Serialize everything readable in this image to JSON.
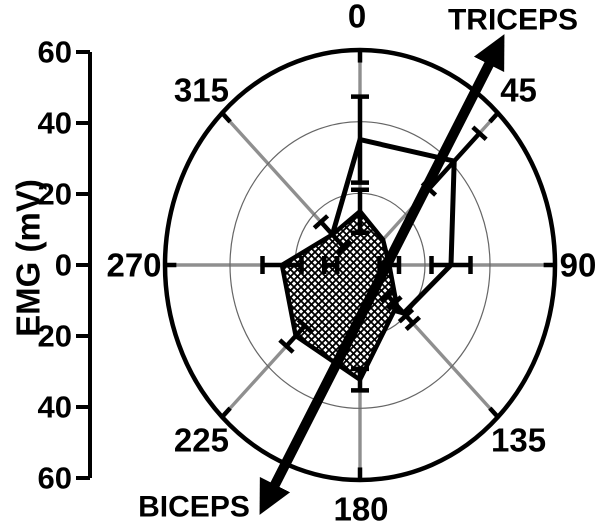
{
  "figure": {
    "triceps_label": "TRICEPS",
    "biceps_label": "BICEPS"
  },
  "chart_data": {
    "type": "polar-line",
    "description": "Polar plot of EMG amplitude (mV) versus direction (degrees) for two muscles; TRICEPS is an open black polygon with error bars, BICEPS is a crosshatched polygon with error bars. A thick double-headed arrow runs from the BICEPS label (lower left) to the TRICEPS label (upper right) through the plot.",
    "radial_axis": {
      "title": "EMG (mV)",
      "tick_labels": [
        "60",
        "40",
        "20",
        "0",
        "20",
        "40",
        "60"
      ],
      "max_mv": 60,
      "gridline_circles_mv": [
        20,
        40
      ],
      "outer_circle_mv": 60
    },
    "angles_deg": [
      0,
      45,
      90,
      135,
      180,
      225,
      270,
      315
    ],
    "angle_labels": [
      "0",
      "45",
      "90",
      "135",
      "180",
      "225",
      "270",
      "315"
    ],
    "series": [
      {
        "name": "TRICEPS",
        "style": "open-polygon",
        "values_mv": [
          35,
          41,
          28,
          19,
          10,
          6,
          9,
          12
        ],
        "errors_mv": [
          12,
          11,
          6,
          4,
          0,
          0,
          2,
          0
        ]
      },
      {
        "name": "BICEPS",
        "style": "crosshatched-polygon",
        "values_mv": [
          15,
          10,
          9,
          16,
          32,
          28,
          24,
          12
        ],
        "errors_mv": [
          6,
          0,
          3,
          4,
          3,
          4,
          6,
          5
        ]
      }
    ],
    "annotation_arrow": {
      "from_label": "BICEPS",
      "to_label": "TRICEPS",
      "description": "thick double-headed arrow through the polar plot, lower-left to upper-right"
    },
    "colors": {
      "data": "#000000",
      "spokes": "#8f8f8f",
      "gridlines": "#666666",
      "background": "#ffffff"
    }
  }
}
